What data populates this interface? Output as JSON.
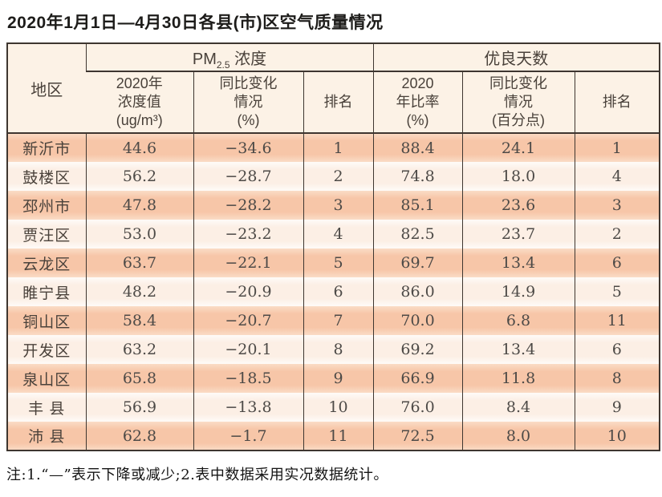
{
  "title": "2020年1月1日—4月30日各县(市)区空气质量情况",
  "table": {
    "region_header": "地区",
    "pm_group": {
      "prefix": "PM",
      "sub": "2.5",
      "suffix": " 浓度"
    },
    "good_group": "优良天数",
    "sub_headers": [
      "2020年\n浓度值\n(ug/m³)",
      "同比变化\n情况\n(%)",
      "排名",
      "2020\n年比率\n(%)",
      "同比变化\n情况\n(百分点)",
      "排名"
    ],
    "column_keys": [
      "region",
      "pm-value",
      "pm-change",
      "pm-rank",
      "good-rate",
      "good-change",
      "good-rank"
    ]
  },
  "chart_data": {
    "type": "table",
    "title": "2020年1月1日—4月30日各县(市)区空气质量情况",
    "column_groups": [
      "PM2.5 浓度",
      "优良天数"
    ],
    "columns": [
      "地区",
      "2020年浓度值(ug/m³)",
      "同比变化情况(%)",
      "排名",
      "2020年比率(%)",
      "同比变化情况(百分点)",
      "排名"
    ],
    "rows": [
      [
        "新沂市",
        "44.6",
        "−34.6",
        "1",
        "88.4",
        "24.1",
        "1"
      ],
      [
        "鼓楼区",
        "56.2",
        "−28.7",
        "2",
        "74.8",
        "18.0",
        "4"
      ],
      [
        "邳州市",
        "47.8",
        "−28.2",
        "3",
        "85.1",
        "23.6",
        "3"
      ],
      [
        "贾汪区",
        "53.0",
        "−23.2",
        "4",
        "82.5",
        "23.7",
        "2"
      ],
      [
        "云龙区",
        "63.7",
        "−22.1",
        "5",
        "69.7",
        "13.4",
        "6"
      ],
      [
        "睢宁县",
        "48.2",
        "−20.9",
        "6",
        "86.0",
        "14.9",
        "5"
      ],
      [
        "铜山区",
        "58.4",
        "−20.7",
        "7",
        "70.0",
        "6.8",
        "11"
      ],
      [
        "开发区",
        "63.2",
        "−20.1",
        "8",
        "69.2",
        "13.4",
        "6"
      ],
      [
        "泉山区",
        "65.8",
        "−18.5",
        "9",
        "66.9",
        "11.8",
        "8"
      ],
      [
        "丰 县",
        "56.9",
        "−13.8",
        "10",
        "76.0",
        "8.4",
        "9"
      ],
      [
        "沛 县",
        "62.8",
        "−1.7",
        "11",
        "72.5",
        "8.0",
        "10"
      ]
    ]
  },
  "footnote": "注:1.“—”表示下降或减少;2.表中数据采用实况数据统计。",
  "colors": {
    "stripe_odd": "#f7c6a8",
    "stripe_even": "#fcefe5",
    "header_bg": "#fcf2e6",
    "border": "#3e3630"
  }
}
